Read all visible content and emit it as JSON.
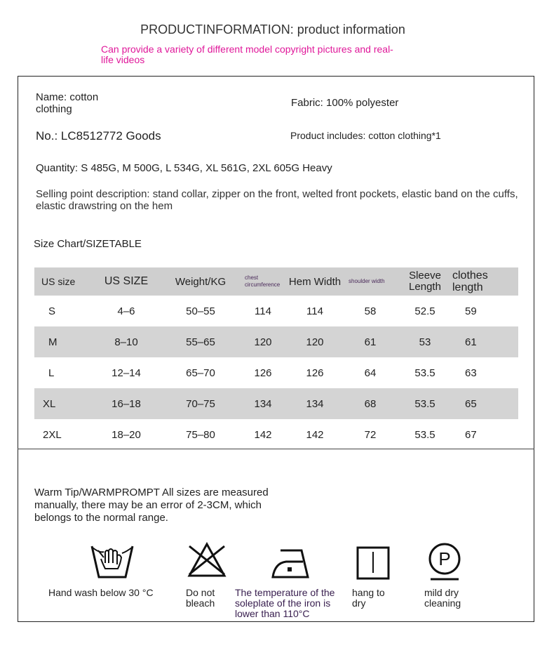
{
  "header": {
    "title": "PRODUCTINFORMATION: product information",
    "subtitle": "Can provide a variety of different model copyright pictures and real-life videos"
  },
  "info": {
    "name": "Name: cotton clothing",
    "fabric": "Fabric: 100% polyester",
    "number": "No.: LC8512772 Goods",
    "includes": "Product includes: cotton clothing*1",
    "quantity": "Quantity: S 485G, M 500G, L 534G, XL 561G, 2XL 605G Heavy",
    "selling_point": "Selling point description: stand collar, zipper on the front, welted front pockets, elastic band on the cuffs, elastic drawstring on the hem"
  },
  "size_chart": {
    "title": "Size Chart/SIZETABLE",
    "headers": [
      "US size",
      "US SIZE",
      "Weight/KG",
      "chest circumference",
      "Hem Width",
      "shoulder width",
      "Sleeve Length",
      "clothes length"
    ],
    "rows": [
      [
        "S",
        "4–6",
        "50–55",
        "114",
        "114",
        "58",
        "52.5",
        "59"
      ],
      [
        "M",
        "8–10",
        "55–65",
        "120",
        "120",
        "61",
        "53",
        "61"
      ],
      [
        "L",
        "12–14",
        "65–70",
        "126",
        "126",
        "64",
        "53.5",
        "63"
      ],
      [
        "XL",
        "16–18",
        "70–75",
        "134",
        "134",
        "68",
        "53.5",
        "65"
      ],
      [
        "2XL",
        "18–20",
        "75–80",
        "142",
        "142",
        "72",
        "53.5",
        "67"
      ]
    ]
  },
  "warm_tip": "Warm Tip/WARMPROMPT All sizes are measured manually, there may be an error of 2-3CM, which belongs to the normal range.",
  "care": [
    {
      "icon": "hand-wash-icon",
      "label": "Hand wash below 30 °C"
    },
    {
      "icon": "no-bleach-icon",
      "label": "Do not bleach"
    },
    {
      "icon": "iron-low-icon",
      "label": "The temperature of the soleplate of the iron is lower than 110°C"
    },
    {
      "icon": "hang-dry-icon",
      "label": "hang to dry"
    },
    {
      "icon": "mild-dry-clean-icon",
      "label": "mild dry cleaning"
    }
  ]
}
